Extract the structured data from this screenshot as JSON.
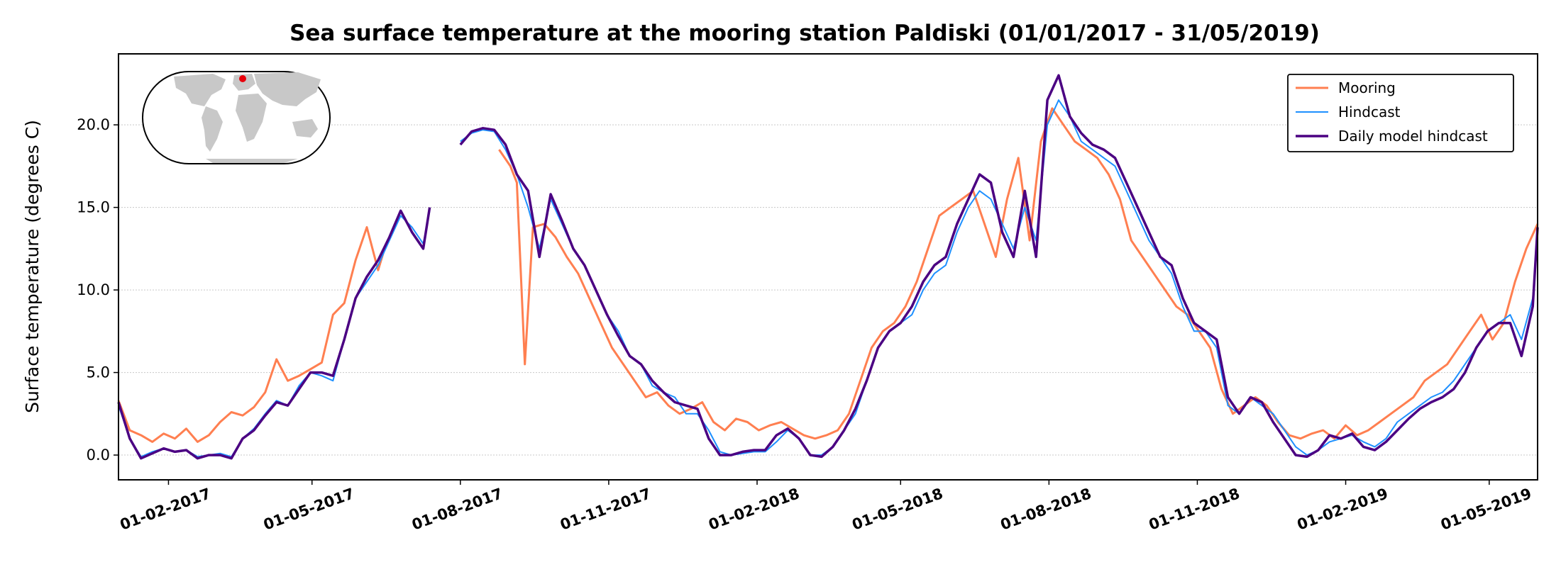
{
  "chart_data": {
    "type": "line",
    "title": "Sea surface temperature at the mooring station Paldiski (01/01/2017 - 31/05/2019)",
    "ylabel": "Surface temperature (degrees C)",
    "xlabel": "",
    "x_range": [
      "2017-01-01",
      "2019-05-31"
    ],
    "ylim": [
      -1.5,
      24.3
    ],
    "yticks": [
      0,
      5,
      10,
      15,
      20
    ],
    "ytick_labels": [
      "0.0",
      "5.0",
      "10.0",
      "15.0",
      "20.0"
    ],
    "xticks": [
      "2017-02-01",
      "2017-05-01",
      "2017-08-01",
      "2017-11-01",
      "2018-02-01",
      "2018-05-01",
      "2018-08-01",
      "2018-11-01",
      "2019-02-01",
      "2019-05-01"
    ],
    "xtick_labels": [
      "01-02-2017",
      "01-05-2017",
      "01-08-2017",
      "01-11-2017",
      "01-02-2018",
      "01-05-2018",
      "01-08-2018",
      "01-11-2018",
      "01-02-2019",
      "01-05-2019"
    ],
    "grid": "y-dotted",
    "legend_position": "top-right",
    "inset": "world map with red marker for station location",
    "series": [
      {
        "name": "Mooring",
        "color": "#ff7f50",
        "x": [
          "2017-01-01",
          "2017-01-08",
          "2017-01-15",
          "2017-01-22",
          "2017-01-29",
          "2017-02-05",
          "2017-02-12",
          "2017-02-19",
          "2017-02-26",
          "2017-03-05",
          "2017-03-12",
          "2017-03-19",
          "2017-03-26",
          "2017-04-02",
          "2017-04-09",
          "2017-04-16",
          "2017-04-23",
          "2017-04-30",
          "2017-05-07",
          "2017-05-14",
          "2017-05-21",
          "2017-05-28",
          "2017-06-04",
          "2017-06-11",
          "2017-06-15",
          null,
          "2017-08-25",
          "2017-09-01",
          "2017-09-05",
          "2017-09-10",
          "2017-09-15",
          "2017-09-22",
          "2017-09-29",
          "2017-10-06",
          "2017-10-13",
          "2017-10-20",
          "2017-10-27",
          "2017-11-03",
          "2017-11-10",
          "2017-11-17",
          "2017-11-24",
          "2017-12-01",
          "2017-12-08",
          "2017-12-15",
          "2017-12-22",
          "2017-12-29",
          "2018-01-05",
          "2018-01-12",
          "2018-01-19",
          "2018-01-26",
          "2018-02-02",
          "2018-02-09",
          "2018-02-16",
          "2018-02-23",
          "2018-03-02",
          "2018-03-09",
          "2018-03-16",
          "2018-03-23",
          "2018-03-30",
          "2018-04-06",
          "2018-04-13",
          "2018-04-20",
          "2018-04-27",
          "2018-05-04",
          "2018-05-11",
          "2018-05-18",
          "2018-05-25",
          "2018-06-01",
          "2018-06-08",
          "2018-06-15",
          "2018-06-22",
          "2018-06-29",
          "2018-07-06",
          "2018-07-13",
          "2018-07-20",
          "2018-07-27",
          "2018-08-03",
          "2018-08-10",
          "2018-08-17",
          "2018-08-24",
          "2018-08-31",
          "2018-09-07",
          "2018-09-14",
          "2018-09-21",
          "2018-09-28",
          "2018-10-05",
          "2018-10-12",
          "2018-10-19",
          "2018-10-26",
          "2018-11-02",
          "2018-11-09",
          "2018-11-16",
          "2018-11-23",
          "2018-11-30",
          "2018-12-07",
          "2018-12-14",
          "2018-12-21",
          "2018-12-28",
          "2019-01-04",
          "2019-01-11",
          "2019-01-18",
          "2019-01-25",
          "2019-02-01",
          "2019-02-08",
          "2019-02-15",
          "2019-02-22",
          "2019-03-01",
          "2019-03-08",
          "2019-03-15",
          "2019-03-22",
          "2019-03-29",
          "2019-04-05",
          "2019-04-12",
          "2019-04-19",
          "2019-04-26",
          "2019-05-03",
          "2019-05-10",
          "2019-05-17",
          "2019-05-24",
          "2019-05-31"
        ],
        "values": [
          3.3,
          1.5,
          1.2,
          0.8,
          1.3,
          1.0,
          1.6,
          0.8,
          1.2,
          2.0,
          2.6,
          2.4,
          2.9,
          3.8,
          5.8,
          4.5,
          4.8,
          5.2,
          5.6,
          8.5,
          9.2,
          11.8,
          13.8,
          11.2,
          12.5,
          null,
          18.5,
          17.5,
          16.5,
          5.5,
          13.8,
          14.0,
          13.2,
          12.0,
          11.0,
          9.5,
          8.0,
          6.5,
          5.5,
          4.5,
          3.5,
          3.8,
          3.0,
          2.5,
          2.8,
          3.2,
          2.0,
          1.5,
          2.2,
          2.0,
          1.5,
          1.8,
          2.0,
          1.6,
          1.2,
          1.0,
          1.2,
          1.5,
          2.5,
          4.5,
          6.5,
          7.5,
          8.0,
          9.0,
          10.5,
          12.5,
          14.5,
          15.0,
          15.5,
          16.0,
          14.0,
          12.0,
          15.5,
          18.0,
          13.0,
          19.0,
          21.0,
          20.0,
          19.0,
          18.5,
          18.0,
          17.0,
          15.5,
          13.0,
          12.0,
          11.0,
          10.0,
          9.0,
          8.5,
          7.5,
          6.5,
          4.0,
          2.5,
          3.0,
          3.5,
          3.0,
          2.0,
          1.2,
          1.0,
          1.3,
          1.5,
          1.0,
          1.8,
          1.2,
          1.5,
          2.0,
          2.5,
          3.0,
          3.5,
          4.5,
          5.0,
          5.5,
          6.5,
          7.5,
          8.5,
          7.0,
          8.0,
          10.5,
          12.5,
          14.0
        ]
      },
      {
        "name": "Hindcast",
        "color": "#1e90ff",
        "x": [
          "2017-01-01",
          "2017-01-08",
          "2017-01-15",
          "2017-01-22",
          "2017-01-29",
          "2017-02-05",
          "2017-02-12",
          "2017-02-19",
          "2017-02-26",
          "2017-03-05",
          "2017-03-12",
          "2017-03-19",
          "2017-03-26",
          "2017-04-02",
          "2017-04-09",
          "2017-04-16",
          "2017-04-23",
          "2017-04-30",
          "2017-05-07",
          "2017-05-14",
          "2017-05-21",
          "2017-05-28",
          "2017-06-04",
          "2017-06-11",
          "2017-06-18",
          "2017-06-25",
          "2017-07-02",
          "2017-07-09",
          "2017-07-13",
          null,
          "2017-08-01",
          "2017-08-08",
          "2017-08-15",
          "2017-08-22",
          "2017-08-29",
          "2017-09-05",
          "2017-09-12",
          "2017-09-19",
          "2017-09-26",
          "2017-10-03",
          "2017-10-10",
          "2017-10-17",
          "2017-10-24",
          "2017-10-31",
          "2017-11-07",
          "2017-11-14",
          "2017-11-21",
          "2017-11-28",
          "2017-12-05",
          "2017-12-12",
          "2017-12-19",
          "2017-12-26",
          "2018-01-02",
          "2018-01-09",
          "2018-01-16",
          "2018-01-23",
          "2018-01-30",
          "2018-02-06",
          "2018-02-13",
          "2018-02-20",
          "2018-02-27",
          "2018-03-06",
          "2018-03-13",
          "2018-03-20",
          "2018-03-27",
          "2018-04-03",
          "2018-04-10",
          "2018-04-17",
          "2018-04-24",
          "2018-05-01",
          "2018-05-08",
          "2018-05-15",
          "2018-05-22",
          "2018-05-29",
          "2018-06-05",
          "2018-06-12",
          "2018-06-19",
          "2018-06-26",
          "2018-07-03",
          "2018-07-10",
          "2018-07-17",
          "2018-07-24",
          "2018-07-31",
          "2018-08-07",
          "2018-08-14",
          "2018-08-21",
          "2018-08-28",
          "2018-09-04",
          "2018-09-11",
          "2018-09-18",
          "2018-09-25",
          "2018-10-02",
          "2018-10-09",
          "2018-10-16",
          "2018-10-23",
          "2018-10-30",
          "2018-11-06",
          "2018-11-13",
          "2018-11-20",
          "2018-11-27",
          "2018-12-04",
          "2018-12-11",
          "2018-12-18",
          "2018-12-25",
          "2019-01-01",
          "2019-01-08",
          "2019-01-15",
          "2019-01-22",
          "2019-01-29",
          "2019-02-05",
          "2019-02-12",
          "2019-02-19",
          "2019-02-26",
          "2019-03-05",
          "2019-03-12",
          "2019-03-19",
          "2019-03-26",
          "2019-04-02",
          "2019-04-09",
          "2019-04-16",
          "2019-04-23",
          "2019-04-30",
          "2019-05-07",
          "2019-05-14",
          "2019-05-21",
          "2019-05-28",
          "2019-05-31"
        ],
        "values": [
          3.0,
          1.0,
          -0.1,
          0.2,
          0.4,
          0.2,
          0.3,
          -0.1,
          0.0,
          0.1,
          -0.1,
          1.0,
          1.6,
          2.5,
          3.3,
          3.0,
          4.2,
          5.0,
          4.8,
          4.5,
          7.0,
          9.5,
          10.5,
          11.5,
          13.0,
          14.5,
          13.8,
          12.8,
          14.8,
          null,
          19.0,
          19.5,
          19.7,
          19.6,
          18.5,
          17.0,
          15.0,
          12.5,
          15.5,
          14.0,
          12.5,
          11.5,
          10.0,
          8.5,
          7.5,
          6.0,
          5.5,
          4.2,
          3.8,
          3.5,
          2.5,
          2.5,
          1.5,
          0.2,
          0.0,
          0.1,
          0.2,
          0.2,
          0.8,
          1.5,
          1.0,
          0.0,
          0.0,
          0.5,
          1.5,
          2.5,
          4.5,
          6.5,
          7.5,
          8.0,
          8.5,
          10.0,
          11.0,
          11.5,
          13.5,
          15.0,
          16.0,
          15.5,
          14.0,
          12.5,
          15.0,
          13.0,
          20.0,
          21.5,
          20.5,
          19.0,
          18.5,
          18.0,
          17.5,
          16.0,
          14.5,
          13.0,
          12.0,
          11.0,
          9.0,
          7.5,
          7.5,
          6.5,
          3.0,
          2.5,
          3.5,
          3.0,
          2.5,
          1.5,
          0.5,
          0.0,
          0.3,
          0.8,
          1.0,
          1.2,
          0.8,
          0.5,
          1.0,
          2.0,
          2.5,
          3.0,
          3.5,
          3.8,
          4.5,
          5.5,
          6.5,
          7.5,
          8.0,
          8.5,
          7.0,
          9.5,
          13.0
        ]
      },
      {
        "name": "Daily model hindcast",
        "color": "#4b0082",
        "x": [
          "2017-01-01",
          "2017-01-08",
          "2017-01-15",
          "2017-01-22",
          "2017-01-29",
          "2017-02-05",
          "2017-02-12",
          "2017-02-19",
          "2017-02-26",
          "2017-03-05",
          "2017-03-12",
          "2017-03-19",
          "2017-03-26",
          "2017-04-02",
          "2017-04-09",
          "2017-04-16",
          "2017-04-23",
          "2017-04-30",
          "2017-05-07",
          "2017-05-14",
          "2017-05-21",
          "2017-05-28",
          "2017-06-04",
          "2017-06-11",
          "2017-06-18",
          "2017-06-25",
          "2017-07-02",
          "2017-07-09",
          "2017-07-13",
          null,
          "2017-08-01",
          "2017-08-08",
          "2017-08-15",
          "2017-08-22",
          "2017-08-29",
          "2017-09-05",
          "2017-09-12",
          "2017-09-19",
          "2017-09-26",
          "2017-10-03",
          "2017-10-10",
          "2017-10-17",
          "2017-10-24",
          "2017-10-31",
          "2017-11-07",
          "2017-11-14",
          "2017-11-21",
          "2017-11-28",
          "2017-12-05",
          "2017-12-12",
          "2017-12-19",
          "2017-12-26",
          "2018-01-02",
          "2018-01-09",
          "2018-01-16",
          "2018-01-23",
          "2018-01-30",
          "2018-02-06",
          "2018-02-13",
          "2018-02-20",
          "2018-02-27",
          "2018-03-06",
          "2018-03-13",
          "2018-03-20",
          "2018-03-27",
          "2018-04-03",
          "2018-04-10",
          "2018-04-17",
          "2018-04-24",
          "2018-05-01",
          "2018-05-08",
          "2018-05-15",
          "2018-05-22",
          "2018-05-29",
          "2018-06-05",
          "2018-06-12",
          "2018-06-19",
          "2018-06-26",
          "2018-07-03",
          "2018-07-10",
          "2018-07-17",
          "2018-07-24",
          "2018-07-31",
          "2018-08-07",
          "2018-08-14",
          "2018-08-21",
          "2018-08-28",
          "2018-09-04",
          "2018-09-11",
          "2018-09-18",
          "2018-09-25",
          "2018-10-02",
          "2018-10-09",
          "2018-10-16",
          "2018-10-23",
          "2018-10-30",
          "2018-11-06",
          "2018-11-13",
          "2018-11-20",
          "2018-11-27",
          "2018-12-04",
          "2018-12-11",
          "2018-12-18",
          "2018-12-25",
          "2019-01-01",
          "2019-01-08",
          "2019-01-15",
          "2019-01-22",
          "2019-01-29",
          "2019-02-05",
          "2019-02-12",
          "2019-02-19",
          "2019-02-26",
          "2019-03-05",
          "2019-03-12",
          "2019-03-19",
          "2019-03-26",
          "2019-04-02",
          "2019-04-09",
          "2019-04-16",
          "2019-04-23",
          "2019-04-30",
          "2019-05-07",
          "2019-05-14",
          "2019-05-21",
          "2019-05-28",
          "2019-05-31"
        ],
        "values": [
          3.2,
          1.0,
          -0.2,
          0.1,
          0.4,
          0.2,
          0.3,
          -0.2,
          0.0,
          0.0,
          -0.2,
          1.0,
          1.5,
          2.4,
          3.2,
          3.0,
          4.0,
          5.0,
          5.0,
          4.8,
          7.0,
          9.5,
          10.8,
          11.8,
          13.2,
          14.8,
          13.5,
          12.5,
          15.0,
          null,
          18.8,
          19.6,
          19.8,
          19.7,
          18.8,
          17.0,
          16.0,
          12.0,
          15.8,
          14.2,
          12.5,
          11.5,
          10.0,
          8.5,
          7.2,
          6.0,
          5.5,
          4.5,
          3.8,
          3.2,
          3.0,
          2.8,
          1.0,
          0.0,
          0.0,
          0.2,
          0.3,
          0.3,
          1.2,
          1.6,
          1.0,
          0.0,
          -0.1,
          0.5,
          1.5,
          2.8,
          4.5,
          6.5,
          7.5,
          8.0,
          9.0,
          10.5,
          11.5,
          12.0,
          14.0,
          15.5,
          17.0,
          16.5,
          13.5,
          12.0,
          16.0,
          12.0,
          21.5,
          23.0,
          20.5,
          19.5,
          18.8,
          18.5,
          18.0,
          16.5,
          15.0,
          13.5,
          12.0,
          11.5,
          9.5,
          8.0,
          7.5,
          7.0,
          3.5,
          2.5,
          3.5,
          3.2,
          2.0,
          1.0,
          0.0,
          -0.1,
          0.3,
          1.2,
          1.0,
          1.3,
          0.5,
          0.3,
          0.8,
          1.5,
          2.2,
          2.8,
          3.2,
          3.5,
          4.0,
          5.0,
          6.5,
          7.5,
          8.0,
          8.0,
          6.0,
          9.0,
          13.8
        ]
      }
    ]
  }
}
